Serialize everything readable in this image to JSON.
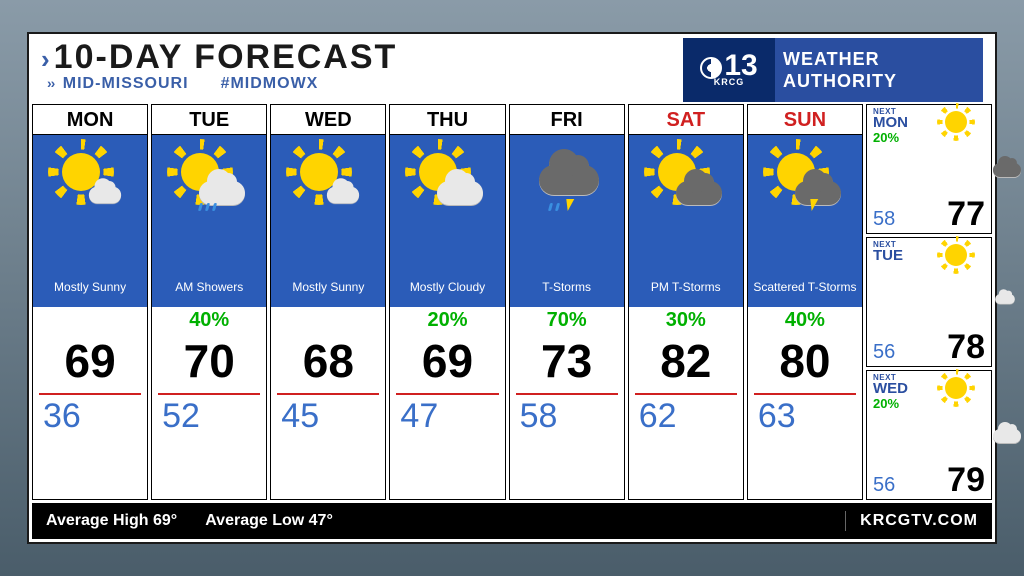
{
  "header": {
    "title": "10-DAY FORECAST",
    "region": "MID-MISSOURI",
    "hashtag": "#MIDMOWX"
  },
  "branding": {
    "channel_number": "13",
    "callsign": "KRCG",
    "line1": "WEATHER",
    "line2": "AUTHORITY",
    "brand_bg": "#2a4ea0",
    "badge_bg": "#0a2a6a"
  },
  "colors": {
    "panel_bg": "#ffffff",
    "day_bg": "#2b5cb8",
    "weekend_text": "#d02020",
    "pop_text": "#00b000",
    "low_text": "#3a6fc8",
    "hi_underline": "#d02020",
    "footer_bg": "#000000",
    "footer_text": "#ffffff",
    "accent_blue": "#3a5fa8"
  },
  "days": [
    {
      "abbr": "MON",
      "weekend": false,
      "icon": "sun-small-cloud",
      "desc": "Mostly Sunny",
      "pop": "",
      "hi": "69",
      "lo": "36"
    },
    {
      "abbr": "TUE",
      "weekend": false,
      "icon": "sun-cloud-rain",
      "desc": "AM Showers",
      "pop": "40%",
      "hi": "70",
      "lo": "52"
    },
    {
      "abbr": "WED",
      "weekend": false,
      "icon": "sun-small-cloud",
      "desc": "Mostly Sunny",
      "pop": "",
      "hi": "68",
      "lo": "45"
    },
    {
      "abbr": "THU",
      "weekend": false,
      "icon": "sun-cloud",
      "desc": "Mostly Cloudy",
      "pop": "20%",
      "hi": "69",
      "lo": "47"
    },
    {
      "abbr": "FRI",
      "weekend": false,
      "icon": "dark-storm",
      "desc": "T-Storms",
      "pop": "70%",
      "hi": "73",
      "lo": "58"
    },
    {
      "abbr": "SAT",
      "weekend": true,
      "icon": "sun-dark-cloud",
      "desc": "PM T-Storms",
      "pop": "30%",
      "hi": "82",
      "lo": "62"
    },
    {
      "abbr": "SUN",
      "weekend": true,
      "icon": "sun-dark-bolt",
      "desc": "Scattered T-Storms",
      "pop": "40%",
      "hi": "80",
      "lo": "63"
    }
  ],
  "extended": [
    {
      "label": "NEXT",
      "day": "MON",
      "icon": "sun-dark-cloud",
      "pop": "20%",
      "lo": "58",
      "hi": "77"
    },
    {
      "label": "NEXT",
      "day": "TUE",
      "icon": "sun-small-cloud",
      "pop": "",
      "lo": "56",
      "hi": "78"
    },
    {
      "label": "NEXT",
      "day": "WED",
      "icon": "sun-cloud",
      "pop": "20%",
      "lo": "56",
      "hi": "79"
    }
  ],
  "footer": {
    "avg_high_label": "Average High",
    "avg_high": "69°",
    "avg_low_label": "Average Low",
    "avg_low": "47°",
    "url": "KRCGTV.COM"
  }
}
